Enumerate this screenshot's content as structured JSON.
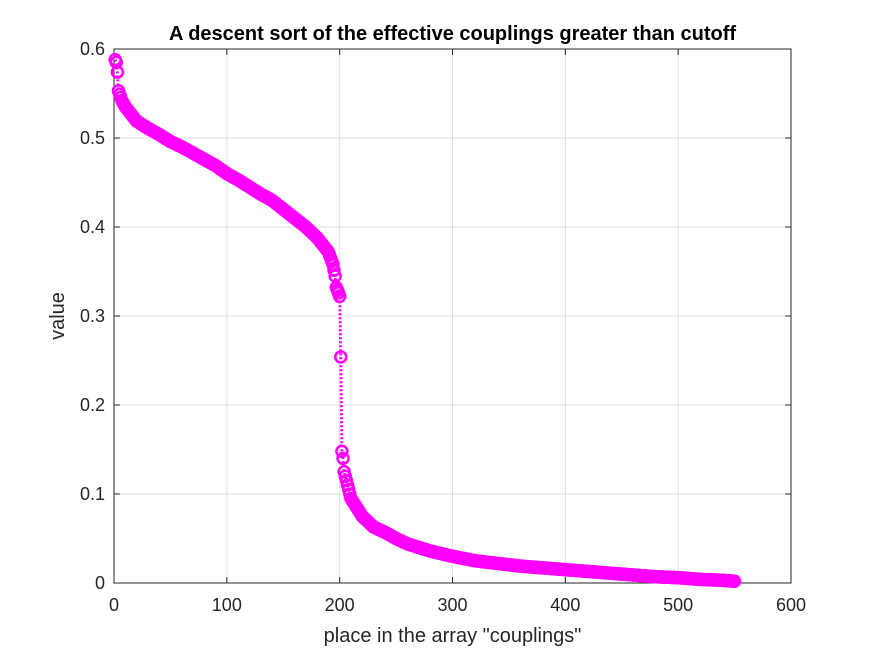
{
  "chart_data": {
    "type": "line",
    "title": "A descent sort of the effective couplings greater than cutoff",
    "xlabel": "place in the array \"couplings\"",
    "ylabel": "value",
    "xlim": [
      0,
      600
    ],
    "ylim": [
      0,
      0.6
    ],
    "xticks": [
      0,
      100,
      200,
      300,
      400,
      500,
      600
    ],
    "xtick_labels": [
      "0",
      "100",
      "200",
      "300",
      "400",
      "500",
      "600"
    ],
    "yticks": [
      0,
      0.1,
      0.2,
      0.3,
      0.4,
      0.5,
      0.6
    ],
    "ytick_labels": [
      "0",
      "0.1",
      "0.2",
      "0.3",
      "0.4",
      "0.5",
      "0.6"
    ],
    "grid": true,
    "series": [
      {
        "color": "#ff00ff",
        "marker": "circle",
        "line_style": "dotted",
        "x_start": 1,
        "x_end": 550,
        "key_points": [
          [
            1,
            0.588
          ],
          [
            2,
            0.585
          ],
          [
            3,
            0.574
          ],
          [
            4,
            0.553
          ],
          [
            5,
            0.549
          ],
          [
            7,
            0.542
          ],
          [
            10,
            0.535
          ],
          [
            15,
            0.527
          ],
          [
            20,
            0.519
          ],
          [
            30,
            0.511
          ],
          [
            40,
            0.504
          ],
          [
            50,
            0.496
          ],
          [
            60,
            0.49
          ],
          [
            70,
            0.483
          ],
          [
            80,
            0.476
          ],
          [
            90,
            0.469
          ],
          [
            100,
            0.46
          ],
          [
            110,
            0.453
          ],
          [
            120,
            0.445
          ],
          [
            130,
            0.437
          ],
          [
            140,
            0.43
          ],
          [
            150,
            0.42
          ],
          [
            160,
            0.41
          ],
          [
            170,
            0.4
          ],
          [
            180,
            0.388
          ],
          [
            190,
            0.372
          ],
          [
            194,
            0.358
          ],
          [
            196,
            0.345
          ],
          [
            197,
            0.332
          ],
          [
            199,
            0.326
          ],
          [
            200,
            0.322
          ],
          [
            201,
            0.254
          ],
          [
            202,
            0.148
          ],
          [
            203,
            0.14
          ],
          [
            204,
            0.125
          ],
          [
            206,
            0.115
          ],
          [
            210,
            0.095
          ],
          [
            215,
            0.085
          ],
          [
            220,
            0.075
          ],
          [
            230,
            0.063
          ],
          [
            240,
            0.057
          ],
          [
            250,
            0.05
          ],
          [
            260,
            0.044
          ],
          [
            270,
            0.04
          ],
          [
            280,
            0.036
          ],
          [
            300,
            0.03
          ],
          [
            320,
            0.025
          ],
          [
            340,
            0.022
          ],
          [
            360,
            0.019
          ],
          [
            380,
            0.017
          ],
          [
            400,
            0.015
          ],
          [
            420,
            0.013
          ],
          [
            440,
            0.011
          ],
          [
            460,
            0.009
          ],
          [
            480,
            0.007
          ],
          [
            500,
            0.006
          ],
          [
            520,
            0.004
          ],
          [
            540,
            0.003
          ],
          [
            550,
            0.002
          ]
        ]
      }
    ]
  }
}
